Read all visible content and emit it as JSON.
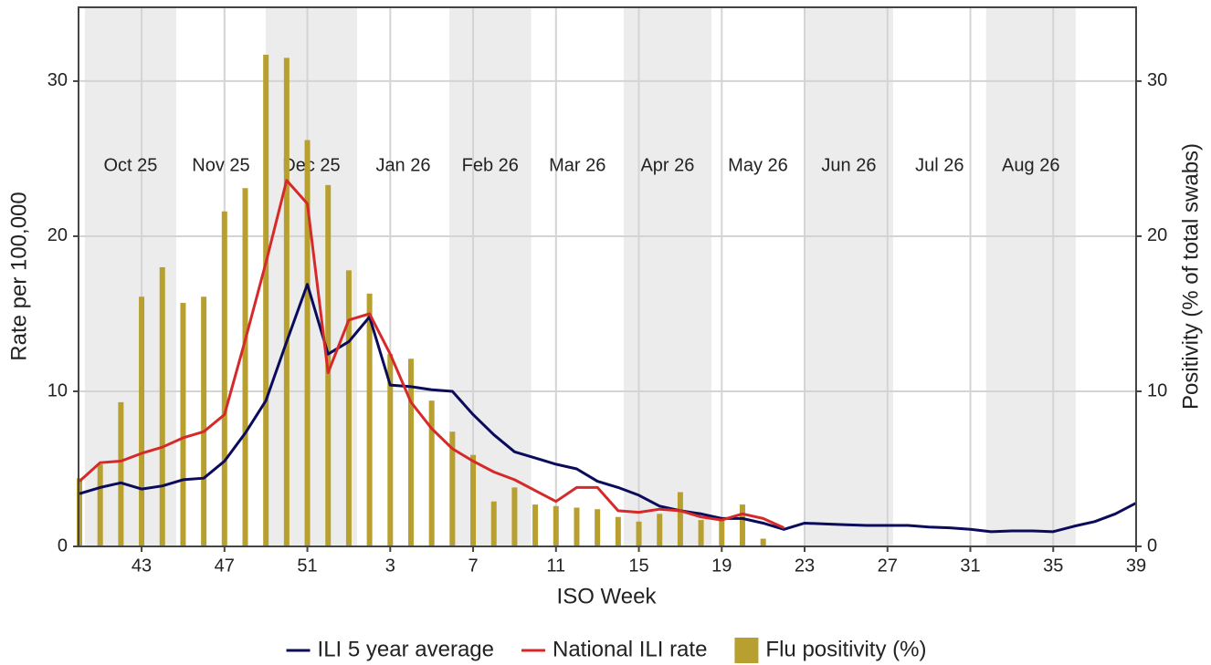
{
  "chart_data": {
    "type": "bar-line",
    "x_label": "ISO Week",
    "y_label": "Rate per 100,000",
    "y2_label": "Positivity (% of total swabs)",
    "categories": [
      null,
      null,
      null,
      "43",
      null,
      null,
      null,
      "47",
      null,
      null,
      null,
      "51",
      null,
      null,
      null,
      "3",
      null,
      null,
      null,
      "7",
      null,
      null,
      null,
      "11",
      null,
      null,
      null,
      "15",
      null,
      null,
      null,
      "19",
      null,
      null,
      null,
      "23",
      null,
      null,
      null,
      "27",
      null,
      null,
      null,
      "31",
      null,
      null,
      null,
      "35",
      null,
      null,
      null,
      "39"
    ],
    "months": [
      {
        "label": "Oct 25",
        "start": 0.26,
        "end": 4.67,
        "shaded": true
      },
      {
        "label": "Nov 25",
        "start": 4.67,
        "end": 8.99,
        "shaded": false
      },
      {
        "label": "Dec 25",
        "start": 8.99,
        "end": 13.4,
        "shaded": true
      },
      {
        "label": "Jan 26",
        "start": 13.4,
        "end": 17.85,
        "shaded": false
      },
      {
        "label": "Feb 26",
        "start": 17.85,
        "end": 21.8,
        "shaded": true
      },
      {
        "label": "Mar 26",
        "start": 21.8,
        "end": 26.27,
        "shaded": false
      },
      {
        "label": "Apr 26",
        "start": 26.27,
        "end": 30.5,
        "shaded": true
      },
      {
        "label": "May 26",
        "start": 30.5,
        "end": 35.0,
        "shaded": false
      },
      {
        "label": "Jun 26",
        "start": 35.0,
        "end": 39.27,
        "shaded": true
      },
      {
        "label": "Jul 26",
        "start": 39.27,
        "end": 43.76,
        "shaded": false
      },
      {
        "label": "Aug 26",
        "start": 43.76,
        "end": 48.08,
        "shaded": true
      }
    ],
    "series": [
      {
        "name": "ILI 5 year average",
        "type": "line",
        "color": "#0b0b5c",
        "values": [
          3.4,
          3.8,
          4.1,
          3.7,
          3.9,
          4.3,
          4.4,
          5.5,
          7.3,
          9.4,
          13.2,
          16.9,
          12.4,
          13.2,
          14.8,
          10.4,
          10.3,
          10.1,
          10.0,
          8.5,
          7.2,
          6.1,
          5.7,
          5.3,
          5.0,
          4.2,
          3.8,
          3.3,
          2.6,
          2.3,
          2.1,
          1.8,
          1.8,
          1.5,
          1.1,
          1.5,
          1.45,
          1.4,
          1.35,
          1.35,
          1.35,
          1.25,
          1.2,
          1.1,
          0.95,
          1.0,
          1.0,
          0.95,
          1.3,
          1.6,
          2.1,
          2.8
        ]
      },
      {
        "name": "National ILI rate",
        "type": "line",
        "color": "#d62a2a",
        "values": [
          4.2,
          5.4,
          5.5,
          6.0,
          6.4,
          7.0,
          7.4,
          8.5,
          13.3,
          18.3,
          23.6,
          22.1,
          11.2,
          14.6,
          15.0,
          12.4,
          9.3,
          7.6,
          6.3,
          5.5,
          4.8,
          4.3,
          3.6,
          2.9,
          3.8,
          3.8,
          2.3,
          2.2,
          2.4,
          2.3,
          1.9,
          1.7,
          2.1,
          1.8,
          1.2,
          null,
          null,
          null,
          null,
          null,
          null,
          null,
          null,
          null,
          null,
          null,
          null,
          null,
          null,
          null,
          null,
          null
        ]
      },
      {
        "name": "Flu positivity (%)",
        "type": "bar",
        "axis": "y2",
        "color": "#b8a030",
        "values": [
          4.4,
          5.3,
          9.3,
          16.1,
          18.0,
          15.7,
          16.1,
          21.6,
          23.1,
          31.7,
          31.5,
          26.2,
          23.3,
          17.8,
          16.3,
          12.4,
          12.1,
          9.4,
          7.4,
          5.9,
          2.9,
          3.8,
          2.7,
          2.6,
          2.5,
          2.4,
          1.9,
          1.6,
          2.1,
          3.5,
          1.7,
          1.8,
          2.7,
          0.5,
          null,
          null,
          null,
          null,
          null,
          null,
          null,
          null,
          null,
          null,
          null,
          null,
          null,
          null,
          null,
          null,
          null,
          null
        ]
      }
    ],
    "ylim": [
      0,
      34.76
    ],
    "yticks": [
      0,
      10,
      20,
      30
    ],
    "y2lim": [
      0,
      34.76
    ],
    "y2ticks": [
      0,
      10,
      20,
      30
    ],
    "grid": true,
    "legend": "bottom"
  }
}
